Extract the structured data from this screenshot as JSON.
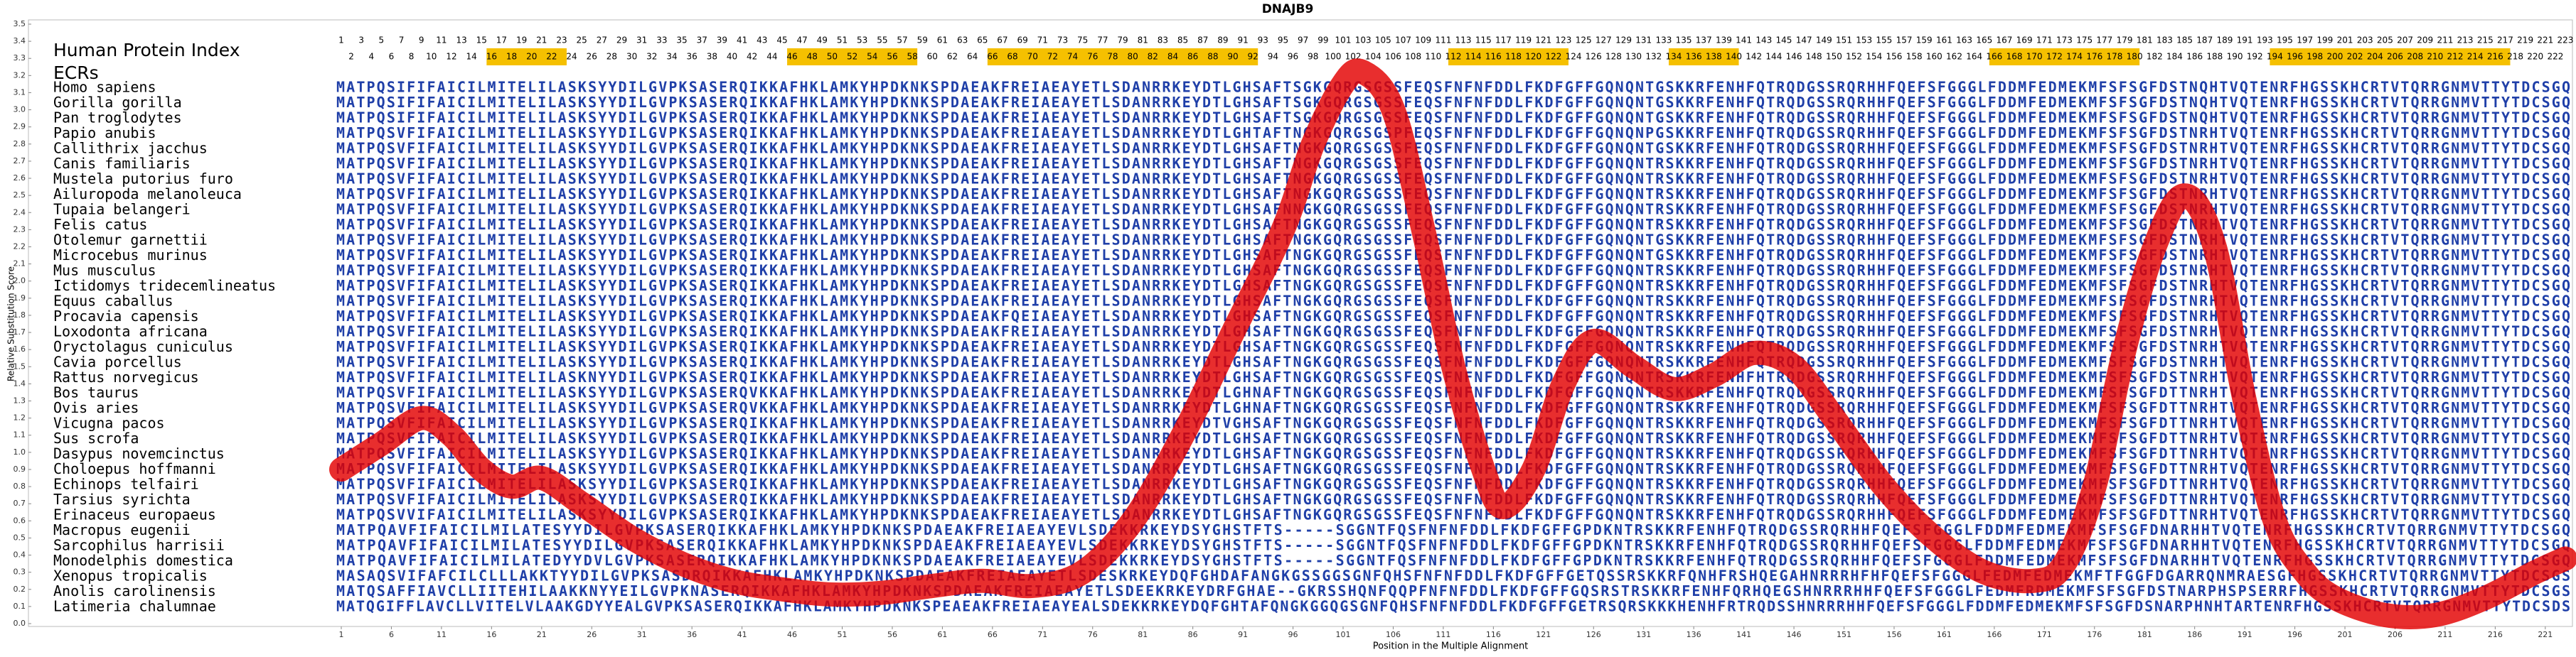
{
  "title": "DNAJB9",
  "header": {
    "index_label": "Human Protein Index",
    "ecr_label": "ECRs"
  },
  "human_index": [
    1,
    2,
    3,
    4,
    5,
    6,
    7,
    8,
    9,
    10,
    11,
    12,
    13,
    14,
    15,
    16,
    17,
    18,
    19,
    20,
    21,
    22,
    23,
    24,
    25,
    26,
    27,
    28,
    29,
    30,
    31,
    32,
    33,
    34,
    35,
    36,
    37,
    38,
    39,
    40,
    41,
    42,
    43,
    44,
    45,
    46,
    47,
    48,
    49,
    50,
    51,
    52,
    53,
    54,
    55,
    56,
    57,
    58,
    59,
    60,
    61,
    62,
    63,
    64,
    65,
    66,
    67,
    68,
    69,
    70,
    71,
    72,
    73,
    74,
    75,
    76,
    77,
    78,
    79,
    80,
    81,
    82,
    83,
    84,
    85,
    86,
    87,
    88,
    89,
    90,
    91,
    92,
    93,
    94,
    95,
    96,
    97,
    98,
    99,
    100,
    101,
    102,
    103,
    104,
    105,
    106,
    107,
    108,
    109,
    110,
    111,
    112,
    113,
    114,
    115,
    116,
    117,
    118,
    119,
    120,
    121,
    122,
    123,
    124,
    125,
    126,
    127,
    128,
    129,
    130,
    131,
    132,
    133,
    134,
    135,
    136,
    137,
    138,
    139,
    140,
    141,
    142,
    143,
    144,
    145,
    146,
    147,
    148,
    149,
    150,
    151,
    152,
    153,
    154,
    155,
    156,
    157,
    158,
    159,
    160,
    161,
    162,
    163,
    164,
    165,
    166,
    167,
    168,
    169,
    170,
    171,
    172,
    173,
    174,
    175,
    176,
    177,
    178,
    179,
    180,
    181,
    182,
    183,
    184,
    185,
    186,
    187,
    188,
    189,
    190,
    191,
    192,
    193,
    194,
    195,
    196,
    197,
    198,
    199,
    200,
    201,
    202,
    203,
    204,
    205,
    206,
    207,
    208,
    209,
    210,
    211,
    212,
    213,
    214,
    215,
    216,
    217,
    218,
    219,
    220,
    221,
    222,
    223
  ],
  "ecrs": [
    [
      16,
      23
    ],
    [
      46,
      58
    ],
    [
      66,
      92
    ],
    [
      112,
      123
    ],
    [
      134,
      140
    ],
    [
      166,
      180
    ],
    [
      194,
      217
    ]
  ],
  "alignment": {
    "species": [
      "Homo sapiens",
      "Gorilla gorilla",
      "Pan troglodytes",
      "Papio anubis",
      "Callithrix jacchus",
      "Canis familiaris",
      "Mustela putorius furo",
      "Ailuropoda melanoleuca",
      "Tupaia belangeri",
      "Felis catus",
      "Otolemur garnettii",
      "Microcebus murinus",
      "Mus musculus",
      "Ictidomys tridecemlineatus",
      "Equus caballus",
      "Procavia capensis",
      "Loxodonta africana",
      "Oryctolagus cuniculus",
      "Cavia porcellus",
      "Rattus norvegicus",
      "Bos taurus",
      "Ovis aries",
      "Vicugna pacos",
      "Sus scrofa",
      "Dasypus novemcinctus",
      "Choloepus hoffmanni",
      "Echinops telfairi",
      "Tarsius syrichta",
      "Erinaceus europaeus",
      "Macropus eugenii",
      "Sarcophilus harrisii",
      "Monodelphis domestica",
      "Xenopus tropicalis",
      "Anolis carolinensis",
      "Latimeria chalumnae"
    ],
    "sequences": [
      "MATPQSIFIFAICILMITELILASKSYYDILGVPKSASERQIKKAFHKLAMKYHPDKNKSPDAEAKFREIAEAYETLSDANRRKEYDTLGHSAFTSGKGQRGSGSSFEQSFNFNFDDLFKDFGFFGQNQNTGSKKRFENHFQTRQDGSSRQRHHFQEFSFGGGLFDDMFEDMEKMFSFSGFDSTNQHTVQTENRFHGSSKHCRTVTQRRGNMVTTYTDCSGQ",
      "MATPQSIFIFAICILMITELILASKSYYDILGVPKSASERQIKKAFHKLAMKYHPDKNKSPDAEAKFREIAEAYETLSDANRRKEYDTLGHSAFTSGKGQRGSGSSFEQSFNFNFDDLFKDFGFFGQNQNTGSKKRFENHFQTRQDGSSRQRHHFQEFSFGGGLFDDMFEDMEKMFSFSGFDSTNQHTVQTENRFHGSSKHCRTVTQRRGNMVTTYTDCSGQ",
      "MATPQSIFIFAICILMITELILASKSYYDILGVPKSASERQIKKAFHKLAMKYHPDKNKSPDAEAKFREIAEAYETLSDANRRKEYDTLGHSAFTSGKGQRGSGSSFEQSFNFNFDDLFKDFGFFGQNQNTGSKKRFENHFQTRQDGSSRQRHHFQEFSFGGGLFDDMFEDMEKMFSFSGFDSTNQHTVQTENRFHGSSKHCRTVTQRRGNMVTTYTDCSGQ",
      "MATPQSVFIFAICILMITELILASKSYYDILGVPKSASERQIKKAFHKLAMKYHPDKNKSPDAEAKFREIAEAYETLSDANRRKEYDTLGHTAFTNGKGQRGSGSPFEQSFNFNFDDLFKDFGFFGQNQNPGSKKRFENHFQTRQDGSSRQRHHFQEFSFGGGLFDDMFEDMEKMFSFSGFDSTNRHTVQTENRFHGSSKHCRTVTQRRGNMVTTYTDCSGQ",
      "MATPQSVFIFAICILMITELILASKSYYDILGVPKSASERQIKKAFHKLAMKYHPDKNKSPDAEAKFREIAEAYETLSDANRRKEYDTLGHSAFTNGKGQRGSGSSFEQSFNFNFDDLFKDFGFFGQNQNTGSKKRFENHFQTRQDGSSRQRHHFQEFSFGGGLFDDMFEDMEKMFSFSGFDSTNRHTVQTENRFHGSSKHCRTVTQRRGNMVTTYTDCSGQ",
      "MATPQSVFIFAICILMITELILASKSYYDILGVPKSASERQIKKAFHKLAMKYHPDKNKSPDAEAKFREIAEAYETLSDANRRKEYDTLGHSAFTNGKGQRGSGSSFEQSFNFNFDDLFKDFGFFGQNQNTRSKKRFENHFQTRQDGSSRQRHHFQEFSFGGGLFDDMFEDMEKMFSFSGFDSTNRHTVQTENRFHGSSKHCRTVTQRRGNMVTTYTDCSGQ",
      "MATPQSVFIFAICILMITELILASKSYYDILGVPKSASERQIKKAFHKLAMKYHPDKNKSPDAEAKFREIAEAYETLSDANRRKEYDTLGHSAFTNGKGQRGSGSSFEQSFNFNFDDLFKDFGFFGQNQNTRSKKRFENHFQTRQDGSSRQRHHFQEFSFGGGLFDDMFEDMEKMFSFSGFDSTNRHTVQTENRFHGSSKHCRTVTQRRGNMVTTYTDCSGQ",
      "MATPQSVFIFAICILMITELILASKSYYDILGVPKSASERQIKKAFHKLAMKYHPDKNKSPDAEAKFREIAEAYETLSDANRRKEYDTLGHSAFTNGKGQRGSGSSFEQSFNFNFDDLFKDFGFFGQNQNTRSKKRFENHFQTRQDGSSRQRHHFQEFSFGGGLFDDMFEDMEKMFSFSGFDSTNRHTVQTENRFHGSSKHCRTVTQRRGNMVTTYTDCSGQ",
      "MATPQSVFIFAICILMITELILASKSYYDILGVPKSASERQIKKAFHKLAMKYHPDKNKSPDAEAKFREIAEAYETLSDANRRKEYDTLGHSAFNNGKGQRGSGSSFEQSFNFNFDDLFKDFGFFGQNQNTRSKKRFENHFQTRQDGSSRQRHHFQEFSFGGGLFDDMFEDMEKMFSFSGFDSTNRHTVQTENRFHGSSKHCRTVTQRRGNMVTTYTDCSGQ",
      "MATPQSVFIFAICILMITELILASKSYYDILGVPKSASERQIKKAFHKLAMKYHPDKNKSPDAEAKFREIAEAYETLSDANRRKEYDTLGHSAFTNGKGQRGSGSSFEQSFNFNFDDLFKDFGFFGQNQNTRSKKRFENHFQTRQDGSSRQRHHFQEFSFGGGLFDDMFEDMEKMFSFSGFDSTNRHTVQTENRFHGSSKHCRTVTQRRGNMVTTYTDCSGQ",
      "MATPQSVFIFAICILMITELILASKSYYDILGVPKSASERQIKKAFHKLAMKYHPDKNKSPDAEAKFREIAEAYETLSDANRRKEYDTLGHSAFTNGKGQRGSGSSFEQSFNFNFDDLFKDFGFFGQNQNTGSKKRFENHFQTRQDGSSRQRHHFQEFSFGGGLFDDMFEDMEKMFSFSGFDSTNRHTVQTENRFHGSSKHCRTVTQRRGNMVTTYTDCSGQ",
      "MATPQSVFIFAICILMITELILASKSYYDILGVPKSASERQIKKAFHKLAMKYHPDKNKSPDAEAKFREIAEAYETLSDANRRKEYDTLGHSAFTNGKGQRGSGSSFEQSFNFNFDDLFKDFGFFGQNQNTGSKKRFENHFQTRQDGSSRQRHHFQEFSFGGGLFDDMFEDMEKMFSFSGFDSTNRHTVQTENRFHGSSKHCRTVTQRRGNMVTTYTDCSGQ",
      "MATPQSVFIFAICILMITELILASKSYYDILGVPKSASERQIKKAFHKLAMKYHPDKNKSPDAEAKFREIAEAYETLSDANRRKEYDTLGHSAFTNGKGQRGSGSSFEQSFNFNFDDLFKDFGFFGQNQNTRSKKRFENHFQTRQDGSSRQRHHFQEFSFGGGLFDDMFEDMEKMFSFSGFDSTNRHTVQTENRFHGSSKHCRTVTQRRGNMVTTYTDCSGQ",
      "MATPQSVFIFAICILMITELILASKSYYDILGVPKSASERQIKKAFHKLAMKYHPDKNKSPDAEAKFREIAEAYETLSDANRRKEYDTLGHSAFTNGKGQRGSGSSFEQSFNFNFDDLFKDFGFFGQNQNTRSKKRFENHFQTRQDGSSRQRHHFQEFSFGGGLFDDMFEDMEKMFSFSGFDSTNRHTVQTENRFHGSSKHCRTVTQRRGNMVTTYTDCSGQ",
      "MATPQSVFIFAICILMITELILASKSYYDILGVPKSASERQIKKAFHKLAMKYHPDKNKSPDAEAKFREIAEAYETLSDANRRKEYDTLGHSAFTNGKGQRGSGSSFEQSFNFNFDDLFKDFGFFGQNQNTRSKKRFENHFQTRQDGSSRQRHHFQEFSFGGGLFDDMFEDMEKMFSFSGFDSTNRHTVQTENRFHGSSKHCRTVTQRRGNMVTTYTDCSGQ",
      "MATPQSVFIFAICILMITELILASKSYYDILGVPKSASERQIKKAFHKLAMKYHPDKNKSPDAEAKFQEIAEAYETLSDANRRKEYDTLGHSAFTNGKGQRGSGSSFEQSFNFNFDDLFKDFGFFGQNQNTRSKKRFENHFQTRQDGSSRQRHHFQEFSFGGGLFDDMFEDMEKMFSFSGFDSTNRHTVQTENRFHGSSKHCRTVTQRRGNMVTTYTDCSGQ",
      "MATPQSVFIFAICILMITELILASKSYYDILGVPKSASERQIKKAFHKLAMKYHPDKNKSPDAEAKFREIAEAYETLSDANRRKEYDTLGHSAFTNGKGQRGSGSSFEQSFNFNFDDLFKDFGFFGQNQNTRSKKRFENHFQTRQDGSSRQRHHFQEFSFGGGLFDDMFEDMEKMFSFSGFDSTNRHTVQTENRFHGSSKHCRTVTQRRGNMVTTYTDCSGQ",
      "MATPQSVFIFAICILMITELILASKSYYDILGVPKSASERQIKKAFHKLAMKYHPDKNKSPDAEAKFREIAEAYETLSDANRRKEYDTLGHSAFTNGKGQRGSGSSFEQSFNFNFDDLFKDFGFFGQNQNTRSKKRFENHFQTRQDGSSRQRHHFQEFSFGGGLFDDMFEDMEKMFSFSGFDSTNRHTVQTENRFHGSSKHCRTVTQRRGNMVTTYTDCSGQ",
      "MATPQSVFIFAICILMITELILASKSYYDILGVPKSASERQIKKAFHKLAMKYHPDKNKSPDAEAKFREIAEAYETLSDANRRKEYDTLGHSAFTNGKGQRGSGSSFEQSFNFNFDDLFKDFGFFGQNQNTRSKKRFENHFQTRQDGSSRQRHHFQEFSFGGGLFDDMFEDMEKMFSFSGFDSTNRHTVQTENRFHGSSKHCRTVTQRRGNMVTTYTDCSGQ",
      "MATPQSVFIFAICILMITELILASKNYYDILGVPKSASERQIKKAFHKLAMKYHPDKNKSPDAEAKFREIAEAYETLSDANRRKEYDTLGHSAFTNGKGQRGSGSSFEQSFNFNFDDLFKDFGFFGQNQNTRSKKRFENHFHTRQDGSSRQRHHFQEFSFGGGLFDDMFEDMEKMFSFSGFDSTNRHTVQTENRFHGSSKHCRTVTQRRGNMVTTYTDCSGQ",
      "MATPQSVFIFAICILMITELILASKSYYDILGVPKSASERQVKKAFHKLAMKYHPDKNKSPDAEAKFREIAEAYETLSDANRRKEYDTLGHNAFTNGKGQRGSGSSFEQSFNFNFDDLFKDFGFFGQNQNTRSKKRFENHFQTRQDGSSRQRHHFQEFSFGGGLFDDMFEDMEKMFSFSGFDTTNRHTVQTENRFHGSSKHCRTVTQRRGNMVTTYTDCSGQ",
      "MATPQSVFIFAICILMITELILASKSYYDILGVPKSASERQVKKAFHKLAMKYHPDKNKSPDAEAKFREIAEAYETLSDANRRKEYDTLGHNAFTNGKGQRGSGSSFEQSFNFNFDDLFKDFGFFGQNQNTRSKKRFENHFQTRQDGSSRQRHHFQEFSFGGGLFDDMFEDMEKMFSFSGFDTTNRHTVQTENRFHGSSKHCRTVTQRRGNMVTTYTDCSGQ",
      "MATPQSVFIFAICILMITELILASKSYYDILGVPKSASERQIKKAFHKLAMKYHPDKNKSPDAEAKFREIAEAYETLSDANRRKEYDTVGHSAFTNGKGQRGSGSSFEQSFNFNFDDLFKDFGFFGQNQNTRSKKRFENHFQTRQDGSSRQRHHFQEFSFGGGLFDDMFEDMEKMFSFSGFDTTNRHTVQTENRFHGSSKHCRTVTQRRGNMVTTYTDCSGQ",
      "MATPQSVFIFAICILMITELILASKSYYDILGVPKSASERQIKKAFHKLAMKYHPDKNKSPDAEAKFREIAEAYETLSDANRRKEYDTLGHSAFTNGKGQRGSGSSFEQSFNFNFDDLFKDFGFFGQNQNTRSKKRFENHFQTRQDGSSRQRHHFQEFSFGGGLFDDMFEDMEKMFSFSGFDTTNRHTVQTENRFHGSSKHCRTVTQRRGNMVTTYTDCSGQ",
      "MATPQSVFIFAICILMITELILASKSYYDILGVPKSASERQIKKAFHKLAMKYHPDKNKSPDAEAKFREIAEAYETLSDANRRKEYDTLGHSAFTNGKGQRGSGSSFEQSFNFNFDDLFKDFGFFGQNQNTRSKKRFENHFQTRQDGSSRQRHHFQEFSFGGGLFDDMFEDMEKMFSFSGFDTTNRHTVQTENRFHGSSKHCRTVTQRRGNMVTTYTDCSGQ",
      "MATPQSVFIFAICILMITELILASKSYYDILGVPKSASERQIKKAFHKLAMKYHPDKNKSPDAEAKFREIAEAYETLSDANRRKEYDTLGHSAFTNGKGQRGSGSSFEQSFNFNFDDLFKDFGFFGQNQNTRSKKRFENHFQTRQDGSSRQRHHFQEFSFGGGLFDDMFEDMEKMFSFSGFDTTNRHTVQTENRFHGSSKHCRTVTQRRGNMVTTYTDCSGQ",
      "MATPQSVFIFAICILMITELILASKSYYDILGVPKSASERQIKKAFHKLAMKYHPDKNKSPDAEAKFREIAEAYETLSDANRRKEYDTLGHSAFTNGKGQRGSGSSFEQSFNFNFDDLFKDFGFFGQNQNTRSKKRFENHFQTRQDGSSRQRHHFQEFSFGGGLFDDMFEDMEKMFSFSGFDTTNRHTVQTENRFHGSSKHCRTVTQRRGNMVTTYTDCSGQ",
      "MATPQSVFIFAICILMITELILASKSYYDILGVPKSASERQIKKAFHKLAMKYHPDKNKSPDAEAKFREIAEAYETLSDANRRKEYDTLGHSAFTNGKGQRGSGSSFEQSFNFNFDDLFKDFGFFGQNQNTRSKKRFENHFQTRQDGSSRQRHHFQEFSFGGGLFDDMFEDMEKMFSFSGFDTTNRHTVQTENRFHGSSKHCRTVTQRRGNMVTTYTDCSGQ",
      "MATPQSVVIFAICILMITELILASKSYYDILGVPKSASERQIKKAFHKLAMKYHPDKNKSPDAEAKFREIAEAYETLSDANRRKEYDTLGHSAFTNGKGQRGSGSSFEQSFNFNFDDLFKDFGFFGQNQNTRSKKRFENHFQTRQDGSSRQRHHFQEFSFGGGLFDDMFEDMEKMFSFSGFDTTNRHTVQTENRFHGSSKHCRTVTQRRGNMVTTYTDCSGQ",
      "MATPQAVFIFAICILMILATESYYDILGVPKSASERQIKKAFHKLAMKYHPDKNKSPDAEAKFREIAEAYEVLSDEKKRKEYDSYGHSTFTS-----SGGNTFQSFNFNFDDLFKDFGFFGPDKNTRSKKRFENHFQTRQDGSSRQRHHFQEFSFGGGLFDDMFEDMEKMFSFSGFDNARHHTVQTENRFHGSSKHCRTVTQRRGNMVTTYTDCSGQ",
      "MATPQAVFIFAICILMILATESYYDILGVPKSASERQIKKAFHKLAMKYHPDKNKSPDAEAKFREIAEAYEVLSDEKKRKEYDSYGHSTFTS-----SGGNTFQSFNFNFDDLFKDFGFFGPDKNTRSKKRFENHFQTRQDGSSRQRHHFQEFSFGGGLFDDMFEDMEKMFSFSGFDNARHHTVQTENRFHGSSKHCRTVTQRRGNMVTTYTDCSGQ",
      "MATPQAVFIFAICILMILATEDYYDVLGVPKSASERQIKKAFHKLAMKYHPDKNKSPDAEAKFREIAEAYEVLSDEKKRKEYDSYGHSTFTS-----SGGNTFQSFNFNFDDLFKDFGFFGPDKNTRSKKRFENHFQTRQDGSSRQRHHFQEFSFGGGLFDDMFEDMEKMFSFSGFDNARHHTVQTENRFHGSSKHCRTVTQRRGNMVTTYTDCSGQ",
      "MASAQSVIFAFCILCLLLAKKTYYDILGVPKSASDRQIKKAFHKLAMKYHPDKNKSPDAEAKFREIAEAYETLSDESKRKEYDQFGHDAFANGKGSSGGSGNFQHSFNFNFDDLFKDFGFFGETQSSRSKKRFQNHFRSHQEGAHNRRRHFHFQEFSFGGGLFEDMFEDMEKMFTFGGFDGARRQNMRAESGFHGSSKHCRTVTQRRGNMVTTYTDCSGS",
      "MATQSAFFIAVCLLIITEHILAAKKNYYEILGVPKNASERQIKKAFHKLAMKYHPDKNKSPDAEAKFREIAEAYETLSDEEKRKEYDRFGHAE--GKRSSHQNFQQPFNFNFDDLFKDFGFFGQSRSTRSKKRFENHFQRHQEGSHNRRRHHFQEFSFGGGLFEDMFRDMEKMFSFSGFDSTNARPHSPSERRFHGSSKHCRTVTQRRGNMVTTYTDCSGS",
      "MATQGIFFLAVCLLVITELVLAAKGDYYEALGVPKSASERQIKKAFHKLAMKYHPDKNKSPEAEAKFREIAEAYEALSDEKKRKEYDQFGHTAFQNGKGGQGSGNFQHSFNFNFDDLFKDFGFFGETRSQRSKKKHENHFRTRQDSSHNRRRHHFQEFSFGGGLFDDMFEDMEKMFSFSGFDSNARPHNHTARTENRFHGSSKHCRTVTQRRGNMVTTYTDCSDS"
    ]
  },
  "chart_data": {
    "type": "line",
    "y_label": "Relative Substitution Score",
    "x_label": "Position in the Multiple Alignment",
    "xlim": [
      1,
      223
    ],
    "ylim": [
      0,
      3.5
    ],
    "xticks": [
      1,
      6,
      11,
      16,
      21,
      26,
      31,
      36,
      41,
      46,
      51,
      56,
      61,
      66,
      71,
      76,
      81,
      86,
      91,
      96,
      101,
      106,
      111,
      116,
      121,
      126,
      131,
      136,
      141,
      146,
      151,
      156,
      161,
      166,
      171,
      176,
      181,
      186,
      191,
      196,
      201,
      206,
      211,
      216,
      221
    ],
    "yticks": [
      {
        "value": 0,
        "label": "0.0"
      },
      0.1,
      0.2,
      0.3,
      0.4,
      0.5,
      0.6,
      0.7,
      0.8,
      0.9,
      {
        "value": 1,
        "label": "1.0"
      },
      1.1,
      1.2,
      1.3,
      1.4,
      1.5,
      1.6,
      1.7,
      1.8,
      1.9,
      {
        "value": 2,
        "label": "2.0"
      },
      2.1,
      2.2,
      2.3,
      2.4,
      2.5,
      2.6,
      2.7,
      2.8,
      2.9,
      {
        "value": 3,
        "label": "3.0"
      },
      3.1,
      3.2,
      3.3,
      3.4,
      3.5
    ],
    "x": [
      1,
      5,
      9,
      12,
      15,
      18,
      21,
      25,
      30,
      35,
      40,
      45,
      50,
      55,
      60,
      65,
      70,
      75,
      80,
      85,
      90,
      95,
      98,
      101,
      103,
      106,
      109,
      112,
      115,
      117,
      120,
      123,
      126,
      130,
      134,
      138,
      142,
      146,
      150,
      155,
      160,
      165,
      170,
      173,
      176,
      179,
      182,
      185,
      188,
      191,
      194,
      197,
      200,
      205,
      210,
      215,
      220,
      223
    ],
    "values": [
      0.9,
      1.05,
      1.2,
      1.1,
      0.9,
      0.8,
      0.85,
      0.7,
      0.5,
      0.35,
      0.25,
      0.2,
      0.17,
      0.18,
      0.22,
      0.25,
      0.22,
      0.3,
      0.6,
      1.1,
      1.7,
      2.3,
      2.8,
      3.15,
      3.22,
      3.0,
      2.3,
      1.5,
      0.9,
      0.68,
      0.9,
      1.4,
      1.65,
      1.5,
      1.37,
      1.45,
      1.58,
      1.5,
      1.2,
      0.8,
      0.5,
      0.3,
      0.25,
      0.35,
      0.8,
      1.6,
      2.2,
      2.5,
      2.2,
      1.3,
      0.6,
      0.3,
      0.15,
      0.05,
      0.05,
      0.15,
      0.3,
      0.38
    ],
    "color": "#e30000"
  }
}
